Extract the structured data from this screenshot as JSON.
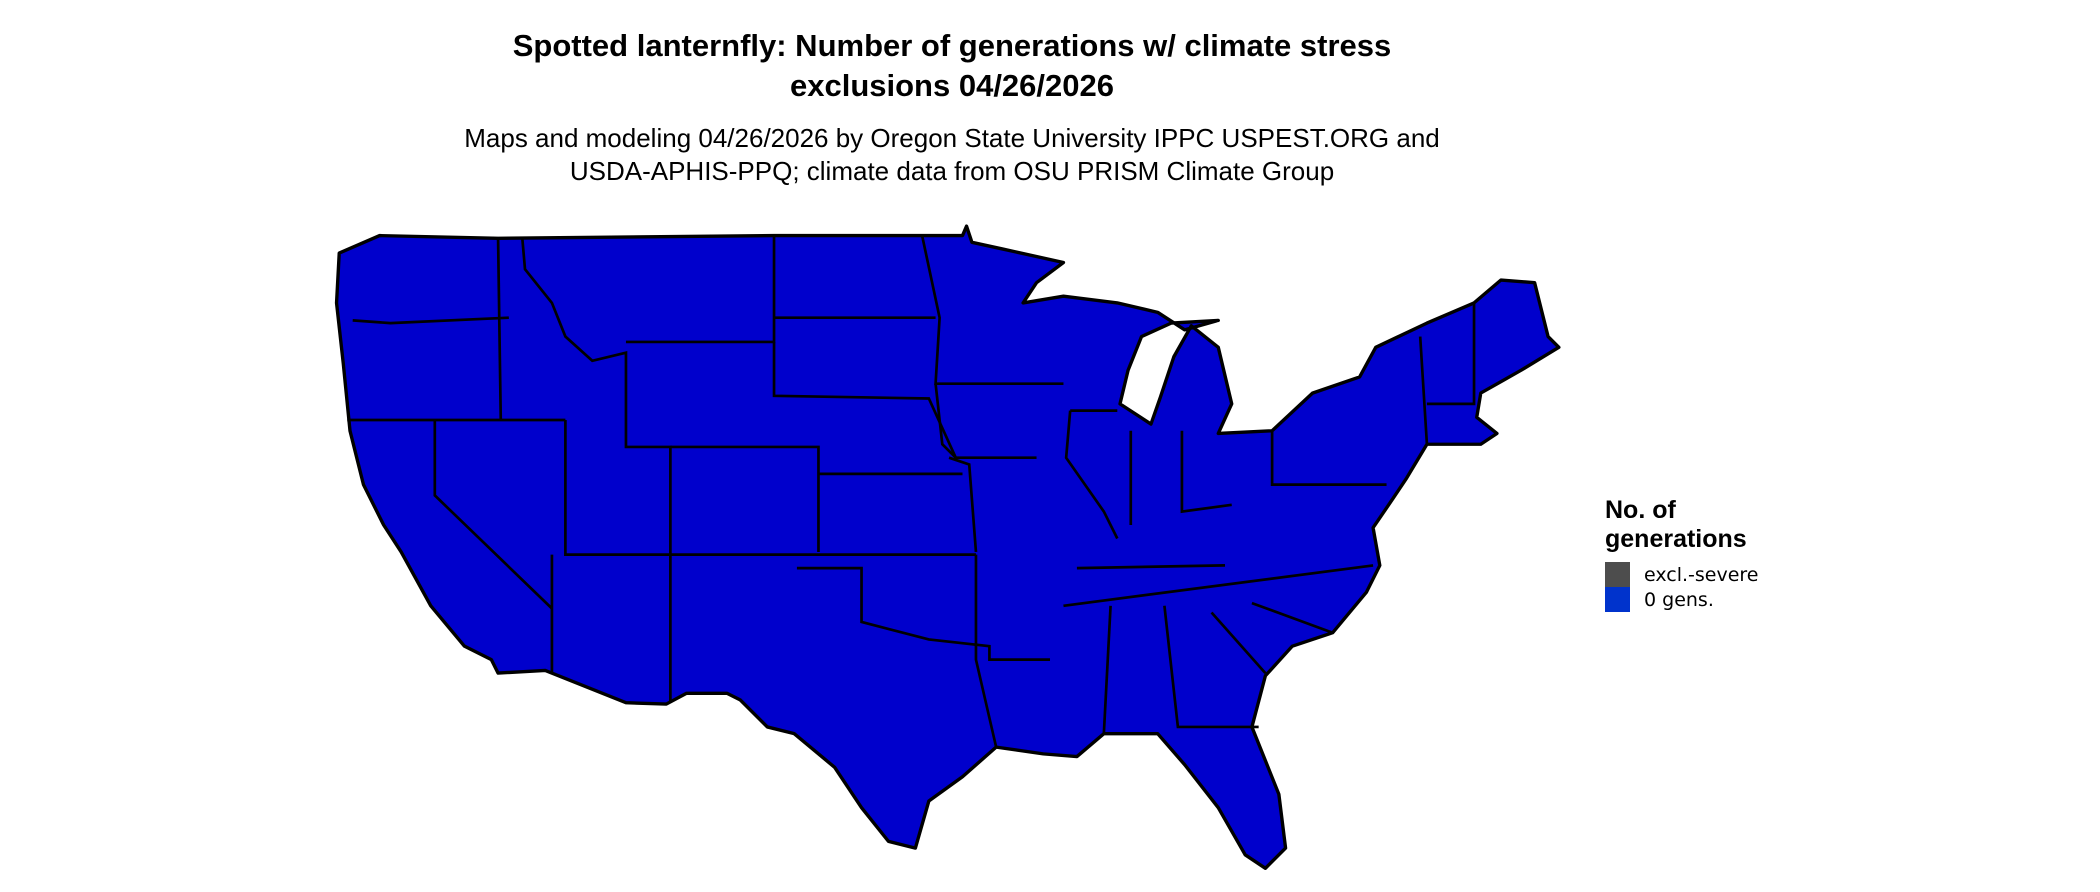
{
  "title": {
    "line1": "Spotted lanternfly: Number of generations w/ climate stress",
    "line2": "exclusions 04/26/2026"
  },
  "subtitle": {
    "line1": "Maps and modeling 04/26/2026 by Oregon State University IPPC USPEST.ORG and",
    "line2": "USDA-APHIS-PPQ; climate data from OSU PRISM Climate Group"
  },
  "map": {
    "region": "Contiguous United States",
    "fill_color": "#0000CC",
    "border_color": "#000000"
  },
  "legend": {
    "title_line1": "No. of",
    "title_line2": "generations",
    "items": [
      {
        "label": "excl.-severe",
        "color": "#4D4D4D"
      },
      {
        "label": "0 gens.",
        "color": "#0033CC"
      }
    ]
  }
}
